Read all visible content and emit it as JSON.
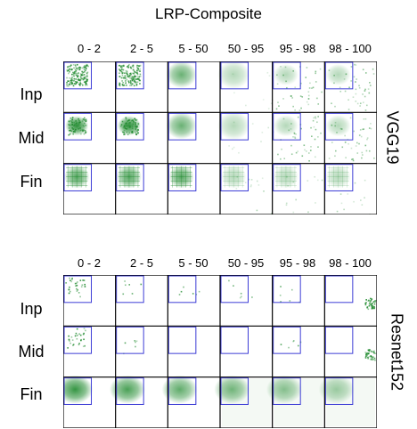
{
  "title": "LRP-Composite",
  "columns": [
    "0 - 2",
    "2 - 5",
    "5 - 50",
    "50 - 95",
    "95 - 98",
    "98 - 100"
  ],
  "rows": [
    "Inp",
    "Mid",
    "Fin"
  ],
  "panels": [
    {
      "model": "VGG19",
      "heat_color": "#1f8a2e",
      "box_color": "#3d3dd6",
      "cells": [
        [
          "dense-speckle",
          "dense-speckle",
          "soft-blob",
          "faint-blob",
          "scattered",
          "scattered"
        ],
        [
          "dense-blob",
          "dense-blob",
          "soft-blob",
          "faint-blob",
          "scattered",
          "scattered"
        ],
        [
          "grid-blob",
          "grid-blob",
          "grid-blob",
          "faint-grid",
          "faint-grid",
          "faint-grid"
        ]
      ]
    },
    {
      "model": "Resnet152",
      "heat_color": "#1f8a2e",
      "box_color": "#3d3dd6",
      "cells": [
        [
          "sparse-dots",
          "few-dots",
          "few-dots",
          "few-dots",
          "few-dots",
          "edge-dots"
        ],
        [
          "sparse-dots",
          "few-dots",
          "empty",
          "empty",
          "few-dots",
          "edge-dots"
        ],
        [
          "smooth-blob",
          "smooth-blob",
          "smooth-blob",
          "smooth-blob",
          "smooth-blob",
          "smooth-blob"
        ]
      ]
    }
  ]
}
